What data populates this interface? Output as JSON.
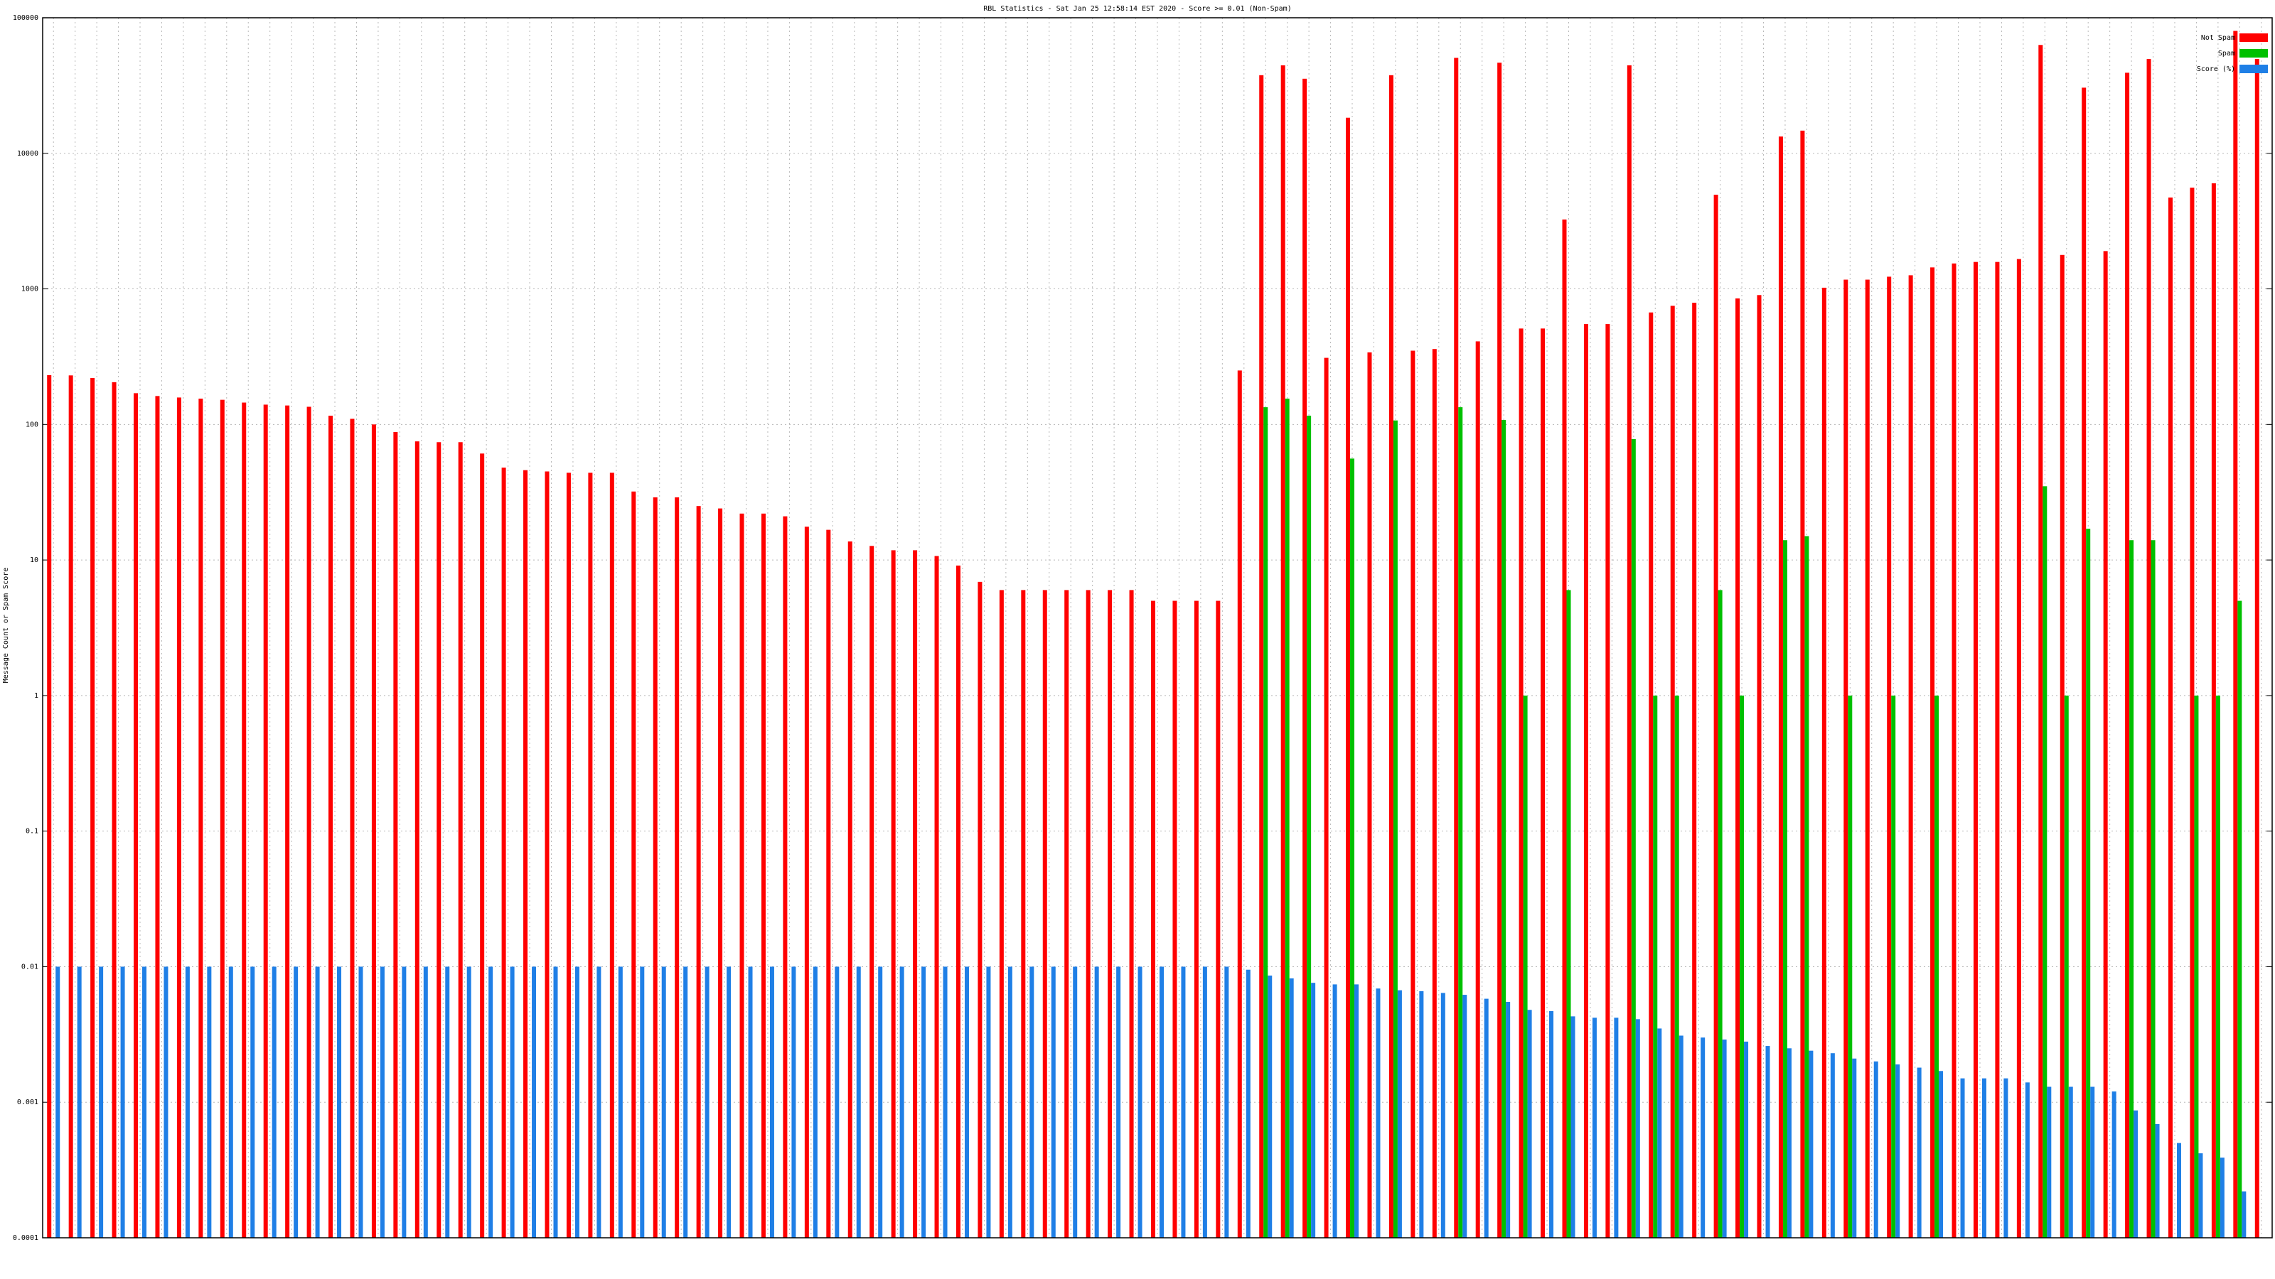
{
  "chart_data": {
    "type": "bar",
    "title": "RBL Statistics - Sat Jan 25 12:58:14 EST 2020 - Score >= 0.01 (Non-Spam)",
    "ylabel": "Message Count or Spam Score",
    "log_scale": true,
    "grid": true,
    "legend": "upper right",
    "categories": [
      null,
      null,
      null,
      null,
      null,
      null,
      null,
      null,
      null,
      null,
      null,
      null,
      null,
      null,
      null,
      null,
      null,
      null,
      null,
      null,
      null,
      null,
      null,
      null,
      null,
      null,
      null,
      null,
      null,
      null,
      null,
      null,
      null,
      null,
      null,
      null,
      null,
      null,
      null,
      null,
      null,
      null,
      null,
      null,
      null,
      null,
      null,
      null,
      null,
      null,
      null,
      null,
      null,
      null,
      null,
      null,
      null,
      null,
      null,
      null,
      null,
      null,
      null,
      null,
      null,
      null,
      null,
      null,
      null,
      null,
      null,
      null,
      null,
      null,
      null,
      null,
      null,
      null,
      null,
      null,
      null,
      null,
      null,
      null,
      null,
      null,
      null,
      null,
      null,
      null,
      null,
      null,
      null,
      null,
      null,
      null,
      null,
      null,
      null,
      null,
      null,
      null,
      null
    ],
    "ylim": [
      0.0001,
      100000
    ],
    "yticks": [
      0.0001,
      0.001,
      0.01,
      0.1,
      1,
      10,
      100,
      1000,
      10000,
      100000
    ],
    "series": [
      {
        "name": "Not Spam",
        "color": "#ff0000",
        "values": [
          231,
          230,
          220,
          205,
          170,
          162,
          158,
          155,
          152,
          145,
          140,
          138,
          135,
          116,
          110,
          100,
          88,
          75,
          74,
          74,
          61,
          48,
          46,
          45,
          44,
          44,
          44,
          32,
          29,
          29,
          25,
          24,
          22,
          22,
          21,
          17.6,
          16.7,
          13.7,
          12.7,
          11.8,
          11.8,
          10.7,
          9.1,
          6.9,
          6,
          6,
          6,
          6,
          6,
          6,
          6,
          5,
          5,
          5,
          5,
          250,
          37700,
          44600,
          35500,
          310,
          18300,
          340,
          37700,
          350,
          360,
          50600,
          410,
          46600,
          510,
          510,
          3250,
          550,
          550,
          44600,
          670,
          750,
          790,
          4950,
          850,
          900,
          13300,
          14700,
          1020,
          1170,
          1170,
          1230,
          1260,
          1440,
          1540,
          1580,
          1580,
          1660,
          63000,
          1780,
          30500,
          1900,
          39300,
          49600,
          4720,
          5580,
          6010,
          80000,
          49600
        ]
      },
      {
        "name": "Spam",
        "color": "#00c000",
        "values": [
          null,
          null,
          null,
          null,
          null,
          null,
          null,
          null,
          null,
          null,
          null,
          null,
          null,
          null,
          null,
          null,
          null,
          null,
          null,
          null,
          null,
          null,
          null,
          null,
          null,
          null,
          null,
          null,
          null,
          null,
          null,
          null,
          null,
          null,
          null,
          null,
          null,
          null,
          null,
          null,
          null,
          null,
          null,
          null,
          null,
          null,
          null,
          null,
          null,
          null,
          null,
          null,
          null,
          null,
          null,
          null,
          134,
          155,
          116,
          null,
          56,
          null,
          107,
          null,
          null,
          134,
          null,
          108,
          1,
          null,
          6,
          null,
          null,
          78,
          1,
          1,
          null,
          6,
          1,
          null,
          14,
          15,
          null,
          1,
          null,
          1,
          null,
          1,
          null,
          null,
          null,
          null,
          35,
          1,
          17,
          null,
          14,
          14,
          null,
          1,
          1,
          5,
          null
        ]
      },
      {
        "name": "Score (%)",
        "color": "#1f7fe6",
        "values": [
          0.01,
          0.01,
          0.01,
          0.01,
          0.01,
          0.01,
          0.01,
          0.01,
          0.01,
          0.01,
          0.01,
          0.01,
          0.01,
          0.01,
          0.01,
          0.01,
          0.01,
          0.01,
          0.01,
          0.01,
          0.01,
          0.01,
          0.01,
          0.01,
          0.01,
          0.01,
          0.01,
          0.01,
          0.01,
          0.01,
          0.01,
          0.01,
          0.01,
          0.01,
          0.01,
          0.01,
          0.01,
          0.01,
          0.01,
          0.01,
          0.01,
          0.01,
          0.01,
          0.01,
          0.01,
          0.01,
          0.01,
          0.01,
          0.01,
          0.01,
          0.01,
          0.01,
          0.01,
          0.01,
          0.01,
          0.0095,
          0.0086,
          0.0082,
          0.0076,
          0.0074,
          0.0074,
          0.0069,
          0.0067,
          0.0066,
          0.0064,
          0.0062,
          0.0058,
          0.0055,
          0.0048,
          0.0047,
          0.0043,
          0.0042,
          0.0042,
          0.0041,
          0.0035,
          0.0031,
          0.003,
          0.0029,
          0.0028,
          0.0026,
          0.0025,
          0.0024,
          0.0023,
          0.0021,
          0.002,
          0.0019,
          0.0018,
          0.0017,
          0.0015,
          0.0015,
          0.0015,
          0.0014,
          0.0013,
          0.0013,
          0.0013,
          0.0012,
          0.00087,
          0.00069,
          0.0005,
          0.00042,
          0.00039,
          0.00022,
          null
        ]
      }
    ]
  }
}
